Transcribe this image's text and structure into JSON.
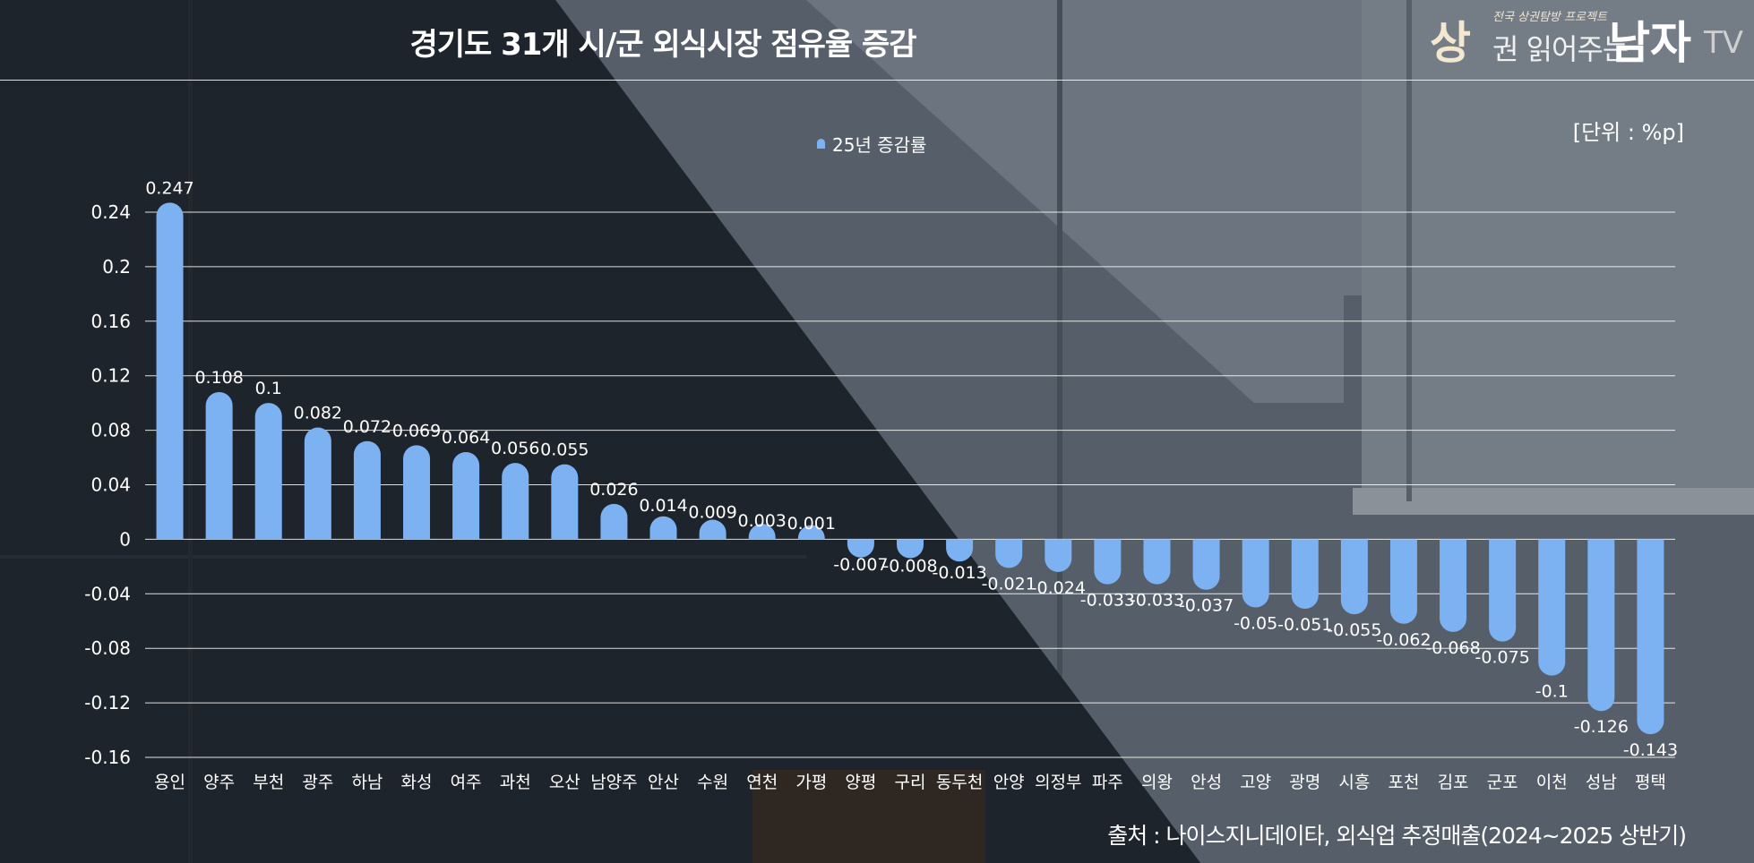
{
  "header": {
    "title": "경기도 31개 시/군 외식시장 점유율 증감",
    "unit": "[단위 : %p]",
    "source": "출처 : 나이스지니데이타, 외식업 추정매출(2024~2025 상반기)"
  },
  "logo": {
    "tagline": "전국 상권탐방 프로젝트",
    "part1": "상",
    "part2": "권 읽어주는",
    "part3": "남자",
    "part4": "TV"
  },
  "legend": {
    "label": "25년 증감률"
  },
  "colors": {
    "bar": "#7cb1f2",
    "grid": "#ffffff",
    "text": "#ffffff"
  },
  "chart_data": {
    "type": "bar",
    "categories": [
      "용인",
      "양주",
      "부천",
      "광주",
      "하남",
      "화성",
      "여주",
      "과천",
      "오산",
      "남양주",
      "안산",
      "수원",
      "연천",
      "가평",
      "양평",
      "구리",
      "동두천",
      "안양",
      "의정부",
      "파주",
      "의왕",
      "안성",
      "고양",
      "광명",
      "시흥",
      "포천",
      "김포",
      "군포",
      "이천",
      "성남",
      "평택"
    ],
    "series": [
      {
        "name": "25년 증감률",
        "values": [
          0.247,
          0.108,
          0.1,
          0.082,
          0.072,
          0.069,
          0.064,
          0.056,
          0.055,
          0.026,
          0.014,
          0.009,
          0.003,
          0.001,
          -0.007,
          -0.008,
          -0.013,
          -0.021,
          -0.024,
          -0.033,
          -0.033,
          -0.037,
          -0.05,
          -0.051,
          -0.055,
          -0.062,
          -0.068,
          -0.075,
          -0.1,
          -0.126,
          -0.143
        ]
      }
    ],
    "yticks": [
      "0.24",
      "0.2",
      "0.16",
      "0.12",
      "0.08",
      "0.04",
      "0",
      "-0.04",
      "-0.08",
      "-0.12",
      "-0.16"
    ],
    "ylim": [
      -0.16,
      0.24
    ],
    "grid": true,
    "legend_position": "top-center"
  }
}
